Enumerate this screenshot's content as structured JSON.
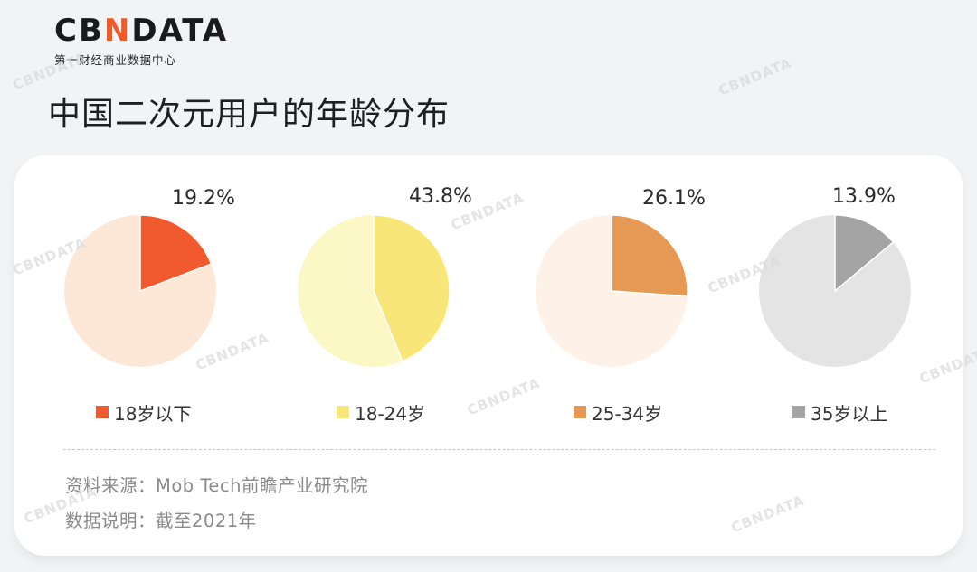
{
  "logo": {
    "main_prefix": "CB",
    "main_n": "N",
    "main_suffix": "DATA",
    "sub": "第一财经商业数据中心",
    "accent": "#f05a28"
  },
  "title": "中国二次元用户的年龄分布",
  "watermark_text": "CBNDATA",
  "chart_data": {
    "type": "pie",
    "title": "中国二次元用户的年龄分布",
    "series": [
      {
        "name": "18岁以下",
        "value": 19.2,
        "label": "19.2%",
        "color": "#f05a2e",
        "rest_color": "#fde7d7"
      },
      {
        "name": "18-24岁",
        "value": 43.8,
        "label": "43.8%",
        "color": "#f8e778",
        "rest_color": "#fcf8c6"
      },
      {
        "name": "25-34岁",
        "value": 26.1,
        "label": "26.1%",
        "color": "#e59955",
        "rest_color": "#fdf1e8"
      },
      {
        "name": "35岁以上",
        "value": 13.9,
        "label": "13.9%",
        "color": "#a4a4a4",
        "rest_color": "#e4e4e4"
      }
    ],
    "legend_position": "bottom"
  },
  "notes": {
    "source": "资料来源：Mob Tech前瞻产业研究院",
    "explain": "数据说明：截至2021年"
  }
}
